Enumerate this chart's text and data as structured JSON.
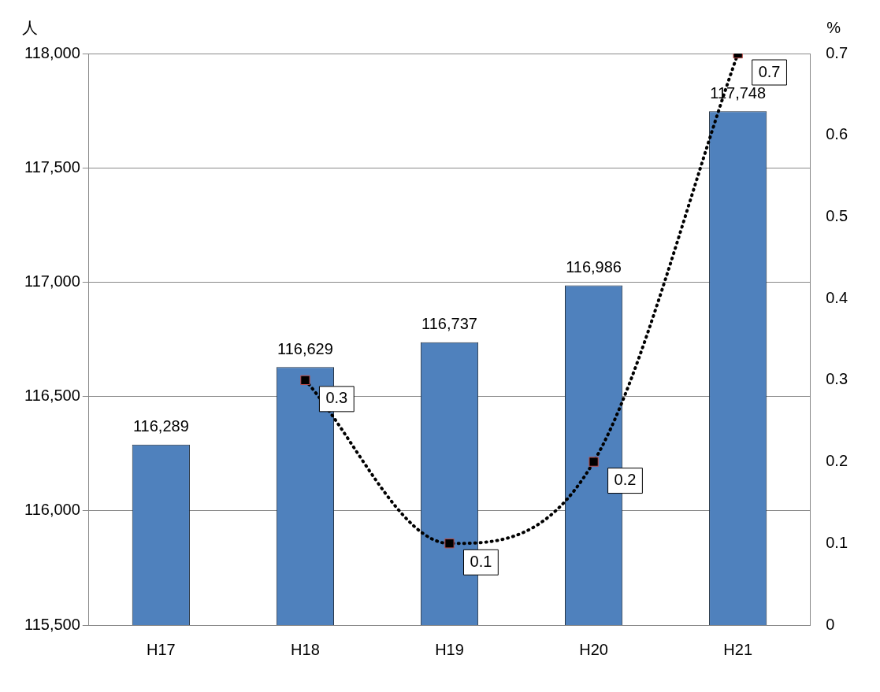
{
  "chart_data": {
    "type": "bar",
    "categories": [
      "H17",
      "H18",
      "H19",
      "H20",
      "H21"
    ],
    "ylabel": "人",
    "y2label": "%",
    "series": [
      {
        "color": "#4f81bd",
        "values": [
          116289,
          116629,
          116737,
          116986,
          117748
        ],
        "value_labels": [
          "116,289",
          "116,629",
          "116,737",
          "116,986",
          "117,748"
        ]
      },
      {
        "type": "line",
        "axis": "y2",
        "color": "#000000",
        "values": [
          null,
          0.3,
          0.1,
          0.2,
          0.7
        ],
        "value_labels": [
          null,
          "0.3",
          "0.1",
          "0.2",
          "0.7"
        ]
      }
    ],
    "ylim": [
      115500,
      118000
    ],
    "yticks": [
      {
        "value": 115500,
        "label": "115,500"
      },
      {
        "value": 116000,
        "label": "116,000"
      },
      {
        "value": 116500,
        "label": "116,500"
      },
      {
        "value": 117000,
        "label": "117,000"
      },
      {
        "value": 117500,
        "label": "117,500"
      },
      {
        "value": 118000,
        "label": "118,000"
      }
    ],
    "y2lim": [
      0,
      0.7
    ],
    "y2ticks": [
      0,
      0.1,
      0.2,
      0.3,
      0.4,
      0.5,
      0.6,
      0.7
    ],
    "grid": "y",
    "legend": false,
    "marker": "square",
    "line_style": "dotted"
  }
}
